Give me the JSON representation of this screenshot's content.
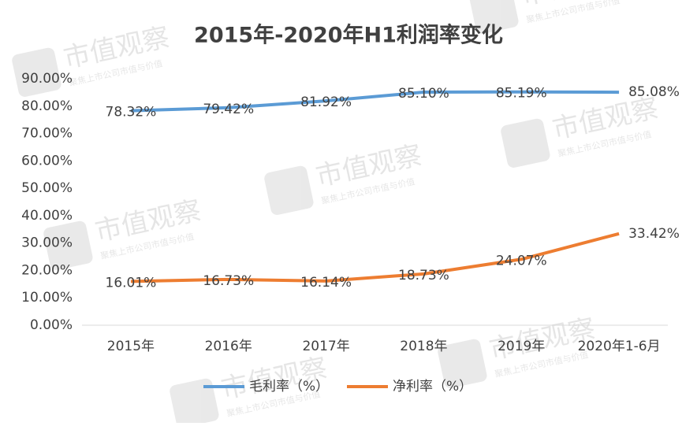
{
  "chart_data": {
    "type": "line",
    "title": "2015年-2020年H1利润率变化",
    "categories": [
      "2015年",
      "2016年",
      "2017年",
      "2018年",
      "2019年",
      "2020年1-6月"
    ],
    "series": [
      {
        "name": "毛利率（%）",
        "color": "#5b9bd5",
        "values": [
          78.32,
          79.42,
          81.92,
          85.1,
          85.19,
          85.08
        ],
        "value_labels": [
          "78.32%",
          "79.42%",
          "81.92%",
          "85.10%",
          "85.19%",
          "85.08%"
        ]
      },
      {
        "name": "净利率（%）",
        "color": "#ed7d31",
        "values": [
          16.01,
          16.73,
          16.14,
          18.73,
          24.07,
          33.42
        ],
        "value_labels": [
          "16.01%",
          "16.73%",
          "16.14%",
          "18.73%",
          "24.07%",
          "33.42%"
        ]
      }
    ],
    "ylim": [
      0,
      90
    ],
    "yticks": [
      {
        "value": 0,
        "label": "0.00%"
      },
      {
        "value": 10,
        "label": "10.00%"
      },
      {
        "value": 20,
        "label": "20.00%"
      },
      {
        "value": 30,
        "label": "30.00%"
      },
      {
        "value": 40,
        "label": "40.00%"
      },
      {
        "value": 50,
        "label": "50.00%"
      },
      {
        "value": 60,
        "label": "60.00%"
      },
      {
        "value": 70,
        "label": "70.00%"
      },
      {
        "value": 80,
        "label": "80.00%"
      },
      {
        "value": 90,
        "label": "90.00%"
      }
    ],
    "grid": false,
    "legend": "bottom",
    "watermark": {
      "text": "市值观察",
      "tagline": "聚焦上市公司市值与价值"
    }
  }
}
